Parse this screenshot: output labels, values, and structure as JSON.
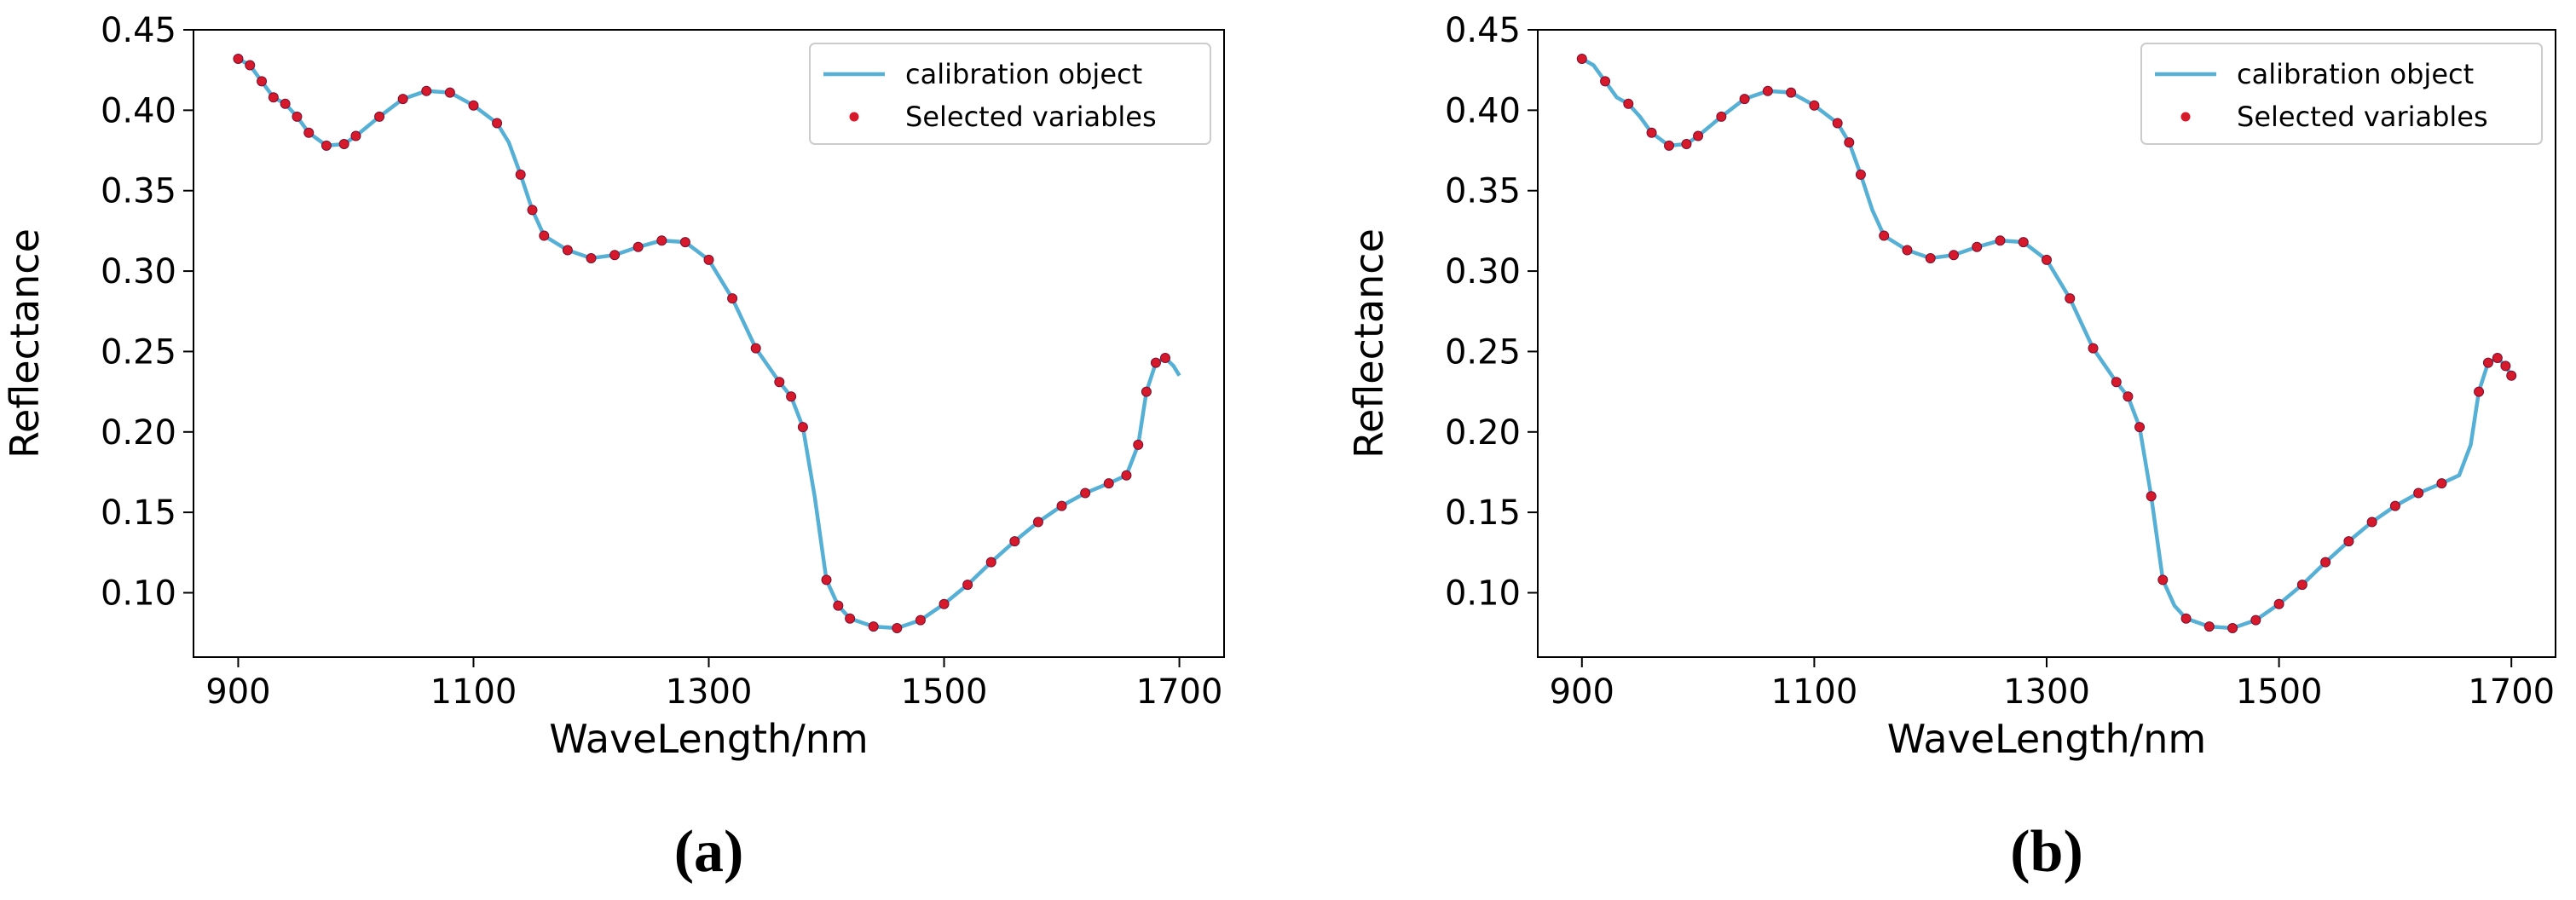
{
  "chart_data": [
    {
      "type": "line",
      "caption": "(a)",
      "xlabel": "WaveLength/nm",
      "ylabel": "Reflectance",
      "xlim": [
        862,
        1738
      ],
      "ylim": [
        0.06,
        0.45
      ],
      "xticks": [
        900,
        1100,
        1300,
        1500,
        1700
      ],
      "yticks": [
        {
          "value": 0.1,
          "label": "0.10"
        },
        0.15,
        {
          "value": 0.2,
          "label": "0.20"
        },
        0.25,
        {
          "value": 0.3,
          "label": "0.30"
        },
        0.35,
        {
          "value": 0.4,
          "label": "0.40"
        },
        0.45
      ],
      "legend": "upper right",
      "grid": false,
      "series": [
        {
          "name": "calibration object",
          "type": "line",
          "color": "#56b0d6",
          "x": [
            900,
            910,
            920,
            930,
            940,
            950,
            960,
            975,
            990,
            1000,
            1020,
            1040,
            1060,
            1080,
            1100,
            1120,
            1130,
            1140,
            1150,
            1160,
            1180,
            1200,
            1220,
            1240,
            1260,
            1280,
            1300,
            1320,
            1340,
            1360,
            1370,
            1380,
            1390,
            1400,
            1410,
            1420,
            1440,
            1460,
            1480,
            1500,
            1520,
            1540,
            1560,
            1580,
            1600,
            1620,
            1640,
            1655,
            1665,
            1672,
            1680,
            1688,
            1695,
            1700
          ],
          "values": [
            0.432,
            0.428,
            0.418,
            0.408,
            0.404,
            0.396,
            0.386,
            0.378,
            0.379,
            0.384,
            0.396,
            0.407,
            0.412,
            0.411,
            0.403,
            0.392,
            0.38,
            0.36,
            0.338,
            0.322,
            0.313,
            0.308,
            0.31,
            0.315,
            0.319,
            0.318,
            0.307,
            0.283,
            0.252,
            0.231,
            0.222,
            0.203,
            0.16,
            0.108,
            0.092,
            0.084,
            0.079,
            0.078,
            0.083,
            0.093,
            0.105,
            0.119,
            0.132,
            0.144,
            0.154,
            0.162,
            0.168,
            0.173,
            0.192,
            0.225,
            0.243,
            0.246,
            0.241,
            0.235
          ]
        },
        {
          "name": "Selected variables",
          "type": "scatter",
          "color": "#d7192c",
          "x": [
            900,
            910,
            920,
            930,
            940,
            950,
            960,
            975,
            990,
            1000,
            1020,
            1040,
            1060,
            1080,
            1100,
            1120,
            1140,
            1150,
            1160,
            1180,
            1200,
            1220,
            1240,
            1260,
            1280,
            1300,
            1320,
            1340,
            1360,
            1370,
            1380,
            1400,
            1410,
            1420,
            1440,
            1460,
            1480,
            1500,
            1520,
            1540,
            1560,
            1580,
            1600,
            1620,
            1640,
            1655,
            1665,
            1672,
            1680,
            1688
          ],
          "values": [
            0.432,
            0.428,
            0.418,
            0.408,
            0.404,
            0.396,
            0.386,
            0.378,
            0.379,
            0.384,
            0.396,
            0.407,
            0.412,
            0.411,
            0.403,
            0.392,
            0.36,
            0.338,
            0.322,
            0.313,
            0.308,
            0.31,
            0.315,
            0.319,
            0.318,
            0.307,
            0.283,
            0.252,
            0.231,
            0.222,
            0.203,
            0.108,
            0.092,
            0.084,
            0.079,
            0.078,
            0.083,
            0.093,
            0.105,
            0.119,
            0.132,
            0.144,
            0.154,
            0.162,
            0.168,
            0.173,
            0.192,
            0.225,
            0.243,
            0.246
          ]
        }
      ]
    },
    {
      "type": "line",
      "caption": "(b)",
      "xlabel": "WaveLength/nm",
      "ylabel": "Reflectance",
      "xlim": [
        862,
        1738
      ],
      "ylim": [
        0.06,
        0.45
      ],
      "xticks": [
        900,
        1100,
        1300,
        1500,
        1700
      ],
      "yticks": [
        {
          "value": 0.1,
          "label": "0.10"
        },
        0.15,
        {
          "value": 0.2,
          "label": "0.20"
        },
        0.25,
        {
          "value": 0.3,
          "label": "0.30"
        },
        0.35,
        {
          "value": 0.4,
          "label": "0.40"
        },
        0.45
      ],
      "legend": "upper right",
      "grid": false,
      "series": [
        {
          "name": "calibration object",
          "type": "line",
          "color": "#56b0d6",
          "x": [
            900,
            910,
            920,
            930,
            940,
            950,
            960,
            975,
            990,
            1000,
            1020,
            1040,
            1060,
            1080,
            1100,
            1120,
            1130,
            1140,
            1150,
            1160,
            1180,
            1200,
            1220,
            1240,
            1260,
            1280,
            1300,
            1320,
            1340,
            1360,
            1370,
            1380,
            1390,
            1400,
            1410,
            1420,
            1440,
            1460,
            1480,
            1500,
            1520,
            1540,
            1560,
            1580,
            1600,
            1620,
            1640,
            1655,
            1665,
            1672,
            1680,
            1688,
            1695,
            1700
          ],
          "values": [
            0.432,
            0.428,
            0.418,
            0.408,
            0.404,
            0.396,
            0.386,
            0.378,
            0.379,
            0.384,
            0.396,
            0.407,
            0.412,
            0.411,
            0.403,
            0.392,
            0.38,
            0.36,
            0.338,
            0.322,
            0.313,
            0.308,
            0.31,
            0.315,
            0.319,
            0.318,
            0.307,
            0.283,
            0.252,
            0.231,
            0.222,
            0.203,
            0.16,
            0.108,
            0.092,
            0.084,
            0.079,
            0.078,
            0.083,
            0.093,
            0.105,
            0.119,
            0.132,
            0.144,
            0.154,
            0.162,
            0.168,
            0.173,
            0.192,
            0.225,
            0.243,
            0.246,
            0.241,
            0.235
          ]
        },
        {
          "name": "Selected variables",
          "type": "scatter",
          "color": "#d7192c",
          "x": [
            900,
            920,
            940,
            960,
            975,
            990,
            1000,
            1020,
            1040,
            1060,
            1080,
            1100,
            1120,
            1130,
            1140,
            1160,
            1180,
            1200,
            1220,
            1240,
            1260,
            1280,
            1300,
            1320,
            1340,
            1360,
            1370,
            1380,
            1390,
            1400,
            1420,
            1440,
            1460,
            1480,
            1500,
            1520,
            1540,
            1560,
            1580,
            1600,
            1620,
            1640,
            1672,
            1680,
            1688,
            1695,
            1700
          ],
          "values": [
            0.432,
            0.418,
            0.404,
            0.386,
            0.378,
            0.379,
            0.384,
            0.396,
            0.407,
            0.412,
            0.411,
            0.403,
            0.392,
            0.38,
            0.36,
            0.322,
            0.313,
            0.308,
            0.31,
            0.315,
            0.319,
            0.318,
            0.307,
            0.283,
            0.252,
            0.231,
            0.222,
            0.203,
            0.16,
            0.108,
            0.084,
            0.079,
            0.078,
            0.083,
            0.093,
            0.105,
            0.119,
            0.132,
            0.144,
            0.154,
            0.162,
            0.168,
            0.225,
            0.243,
            0.246,
            0.241,
            0.235
          ]
        }
      ]
    }
  ]
}
